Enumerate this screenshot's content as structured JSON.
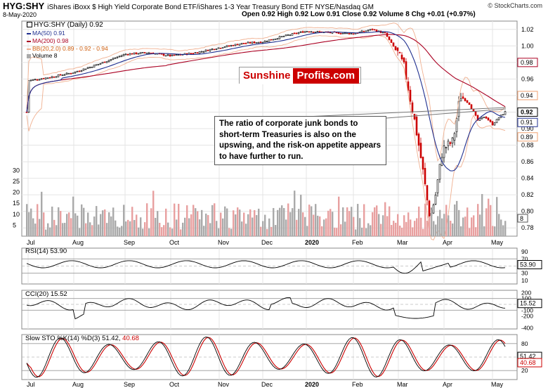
{
  "header": {
    "symbol": "HYG:SHY",
    "description": "iShares iBoxx $ High Yield Corporate Bond ETF/iShares 1-3 Year Treasury Bond ETF  NYSE/Nasdaq GM",
    "date": "8-May-2020",
    "ohlc_text": "Open 0.92  High 0.92  Low 0.91  Close 0.92  Volume 8  Chg +0.01 (+0.97%)",
    "copyright": "© StockCharts.com"
  },
  "logo": {
    "part1": "Sunshine",
    "part2": "Profits.com"
  },
  "annotation": "The ratio of corporate junk bonds to short-term Treasuries is also on the upswing, and the risk-on appetite appears to have further to run.",
  "legend": {
    "main": "HYG:SHY (Daily) 0.92",
    "ma50": "MA(50) 0.91",
    "ma200": "MA(200) 0.98",
    "bb": "BB(20,2.0) 0.89 - 0.92 - 0.94",
    "volume": "Volume 8"
  },
  "colors": {
    "up": "#000000",
    "down": "#cc0000",
    "ma50": "#1f2f8f",
    "ma200": "#aa0022",
    "bb": "#f0b090",
    "vol_up": "#aaaaaa",
    "vol_down": "#e8a0a0",
    "rsi_fill": "#8a6050",
    "cci_pos_fill": "#5a8a5a",
    "sto_k": "#000000",
    "sto_d": "#cc0000"
  },
  "chart_data": [
    {
      "type": "candlestick",
      "title": "HYG:SHY (Daily) 0.92",
      "x_labels": [
        "Jul",
        "Aug",
        "Sep",
        "Oct",
        "Nov",
        "Dec",
        "2020",
        "Feb",
        "Mar",
        "Apr",
        "May"
      ],
      "y_ticks": [
        "1.02",
        "1.00",
        "0.98",
        "0.96",
        "0.94",
        "0.92",
        "0.90",
        "0.88",
        "0.86",
        "0.84",
        "0.82",
        "0.80",
        "0.78"
      ],
      "ylim": [
        0.77,
        1.03
      ],
      "price_tags": [
        "0.98",
        "0.94",
        "0.92",
        "0.91",
        "0.89"
      ],
      "close_series": [
        {
          "x": "Jul",
          "y": 0.965
        },
        {
          "x": "Aug",
          "y": 0.968
        },
        {
          "x": "Sep",
          "y": 0.99
        },
        {
          "x": "Oct",
          "y": 0.988
        },
        {
          "x": "Nov",
          "y": 0.998
        },
        {
          "x": "Dec",
          "y": 1.005
        },
        {
          "x": "2020",
          "y": 1.018
        },
        {
          "x": "Feb",
          "y": 1.015
        },
        {
          "x": "Mar",
          "y": 0.95
        },
        {
          "x": "Mar (low)",
          "y": 0.79
        },
        {
          "x": "Apr",
          "y": 0.88
        },
        {
          "x": "Apr (mid)",
          "y": 0.94
        },
        {
          "x": "May",
          "y": 0.915
        },
        {
          "x": "8-May",
          "y": 0.92
        }
      ],
      "ma50_last": 0.91,
      "ma200_last": 0.98,
      "bb_last": {
        "lower": 0.89,
        "mid": 0.92,
        "upper": 0.94
      }
    },
    {
      "type": "bar",
      "title": "Volume 8",
      "y_ticks": [
        "30",
        "25",
        "20",
        "15",
        "10",
        "5"
      ],
      "last_value": 8
    },
    {
      "type": "line",
      "title": "RSI(14) 53.90",
      "y_ticks": [
        "90",
        "70",
        "50",
        "30",
        "10"
      ],
      "ylim": [
        0,
        100
      ],
      "last_value": 53.9,
      "last_tag": "53.90"
    },
    {
      "type": "line",
      "title": "CCI(20) 15.52",
      "y_ticks": [
        "200",
        "100",
        "0",
        "-100",
        "-200",
        "-400"
      ],
      "last_value": 15.52,
      "last_tag": "15.52"
    },
    {
      "type": "line",
      "title": "Slow STO %K(14) %D(3) 51.42, 40.68",
      "title_k": "Slow STO %K(14) %D(3) 51.42,",
      "title_d": "40.68",
      "y_ticks": [
        "80",
        "20"
      ],
      "ylim": [
        0,
        100
      ],
      "last_k": 51.42,
      "last_d": 40.68,
      "last_tags": [
        "51.42",
        "40.68"
      ],
      "x_labels": [
        "Jul",
        "Aug",
        "Sep",
        "Oct",
        "Nov",
        "Dec",
        "2020",
        "Feb",
        "Mar",
        "Apr",
        "May"
      ]
    }
  ]
}
